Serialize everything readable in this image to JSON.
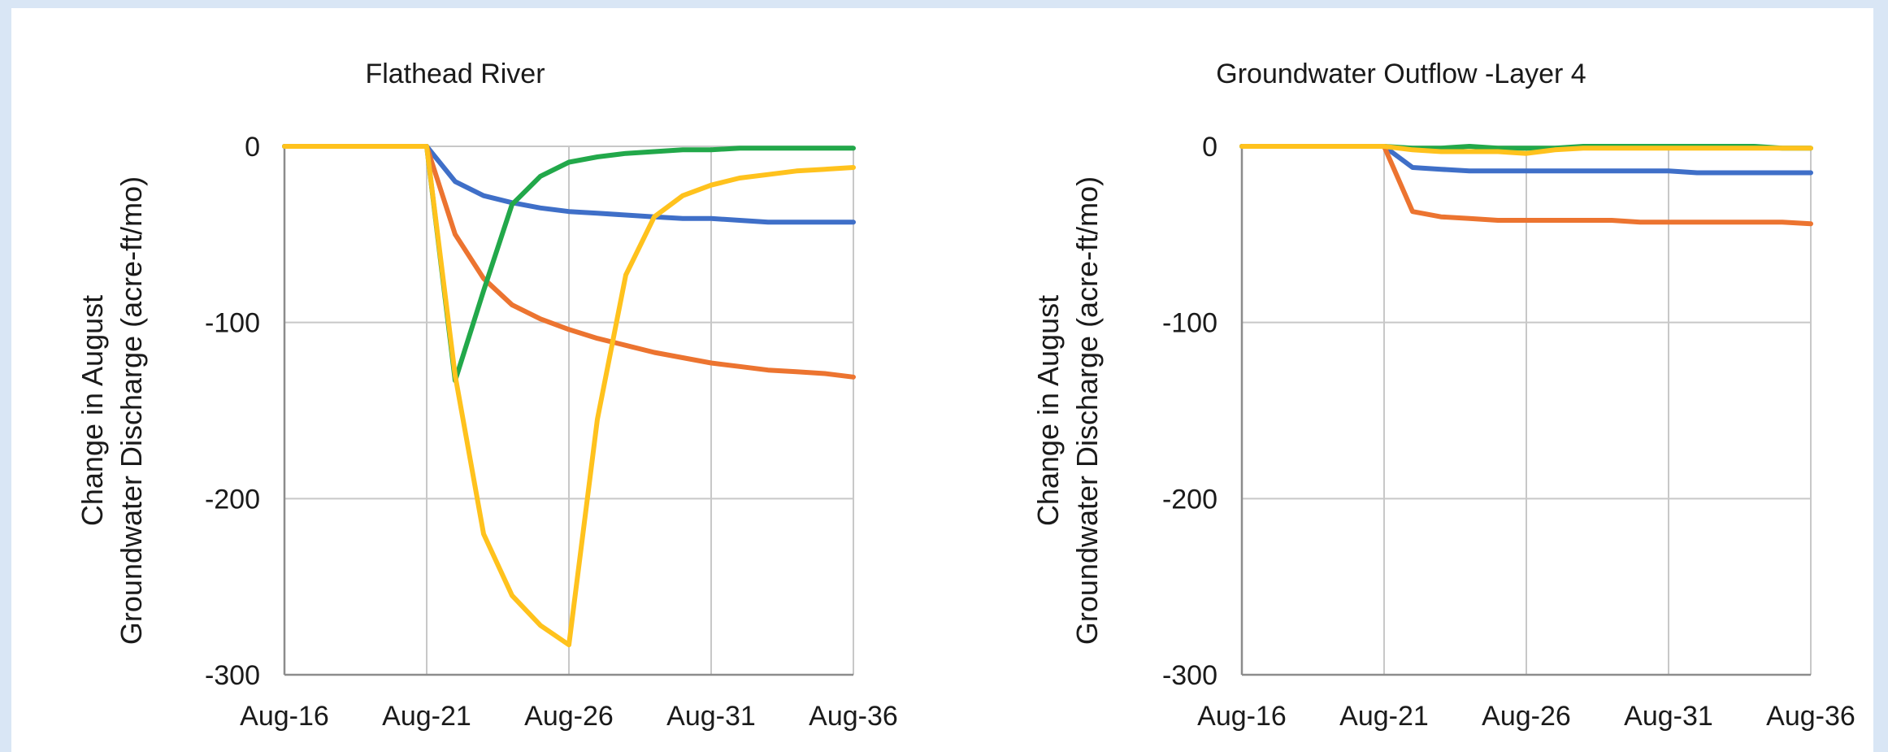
{
  "colors": {
    "page_background": "#d9e6f5",
    "panel_background": "#ffffff",
    "grid": "#c8c8c8",
    "axis": "#8c8c8c",
    "series_blue": "#3f6fc8",
    "series_orange": "#ec7430",
    "series_green": "#22a84a",
    "series_yellow": "#ffc21d"
  },
  "chart_data": [
    {
      "type": "line",
      "title": "Flathead River",
      "ylabel_line1": "Change in August",
      "ylabel_line2": "Groundwater Discharge (acre-ft/mo)",
      "xlabel": "",
      "x_tick_labels": [
        "Aug-16",
        "Aug-21",
        "Aug-26",
        "Aug-31",
        "Aug-36"
      ],
      "y_tick_labels": [
        "0",
        "-100",
        "-200",
        "-300"
      ],
      "ylim": [
        -300,
        0
      ],
      "xlim": [
        2016,
        2036
      ],
      "grid": true,
      "legend": "none",
      "series": [
        {
          "color": "#3f6fc8",
          "x": [
            2016,
            2021,
            2022,
            2023,
            2024,
            2025,
            2026,
            2027,
            2028,
            2029,
            2030,
            2031,
            2032,
            2033,
            2034,
            2035,
            2036
          ],
          "values": [
            0,
            0,
            -20,
            -28,
            -32,
            -35,
            -37,
            -38,
            -39,
            -40,
            -41,
            -41,
            -42,
            -43,
            -43,
            -43,
            -43
          ]
        },
        {
          "color": "#ec7430",
          "x": [
            2016,
            2021,
            2022,
            2023,
            2024,
            2025,
            2026,
            2027,
            2028,
            2029,
            2030,
            2031,
            2032,
            2033,
            2034,
            2035,
            2036
          ],
          "values": [
            0,
            0,
            -50,
            -75,
            -90,
            -98,
            -104,
            -109,
            -113,
            -117,
            -120,
            -123,
            -125,
            -127,
            -128,
            -129,
            -131
          ]
        },
        {
          "color": "#22a84a",
          "x": [
            2016,
            2021,
            2022,
            2023,
            2024,
            2025,
            2026,
            2027,
            2028,
            2029,
            2030,
            2031,
            2032,
            2033,
            2034,
            2035,
            2036
          ],
          "values": [
            0,
            0,
            -133,
            -82,
            -33,
            -17,
            -9,
            -6,
            -4,
            -3,
            -2,
            -2,
            -1,
            -1,
            -1,
            -1,
            -1
          ]
        },
        {
          "color": "#ffc21d",
          "x": [
            2016,
            2021,
            2022,
            2023,
            2024,
            2025,
            2026,
            2027,
            2028,
            2029,
            2030,
            2031,
            2032,
            2033,
            2034,
            2035,
            2036
          ],
          "values": [
            0,
            0,
            -130,
            -220,
            -255,
            -272,
            -283,
            -155,
            -73,
            -40,
            -28,
            -22,
            -18,
            -16,
            -14,
            -13,
            -12
          ]
        }
      ]
    },
    {
      "type": "line",
      "title": "Groundwater Outflow -Layer 4",
      "ylabel_line1": "Change in August",
      "ylabel_line2": "Groundwater Discharge (acre-ft/mo)",
      "xlabel": "",
      "x_tick_labels": [
        "Aug-16",
        "Aug-21",
        "Aug-26",
        "Aug-31",
        "Aug-36"
      ],
      "y_tick_labels": [
        "0",
        "-100",
        "-200",
        "-300"
      ],
      "ylim": [
        -300,
        0
      ],
      "xlim": [
        2016,
        2036
      ],
      "grid": true,
      "legend": "none",
      "series": [
        {
          "color": "#3f6fc8",
          "x": [
            2016,
            2021,
            2022,
            2023,
            2024,
            2025,
            2026,
            2027,
            2028,
            2029,
            2030,
            2031,
            2032,
            2033,
            2034,
            2035,
            2036
          ],
          "values": [
            0,
            0,
            -12,
            -13,
            -14,
            -14,
            -14,
            -14,
            -14,
            -14,
            -14,
            -14,
            -15,
            -15,
            -15,
            -15,
            -15
          ]
        },
        {
          "color": "#ec7430",
          "x": [
            2016,
            2021,
            2022,
            2023,
            2024,
            2025,
            2026,
            2027,
            2028,
            2029,
            2030,
            2031,
            2032,
            2033,
            2034,
            2035,
            2036
          ],
          "values": [
            0,
            0,
            -37,
            -40,
            -41,
            -42,
            -42,
            -42,
            -42,
            -42,
            -43,
            -43,
            -43,
            -43,
            -43,
            -43,
            -44
          ]
        },
        {
          "color": "#22a84a",
          "x": [
            2016,
            2021,
            2022,
            2023,
            2024,
            2025,
            2026,
            2027,
            2028,
            2029,
            2030,
            2031,
            2032,
            2033,
            2034,
            2035,
            2036
          ],
          "values": [
            0,
            0,
            -1,
            -1,
            0,
            -1,
            -1,
            -1,
            0,
            0,
            0,
            0,
            0,
            0,
            0,
            -1,
            -1
          ]
        },
        {
          "color": "#ffc21d",
          "x": [
            2016,
            2021,
            2022,
            2023,
            2024,
            2025,
            2026,
            2027,
            2028,
            2029,
            2030,
            2031,
            2032,
            2033,
            2034,
            2035,
            2036
          ],
          "values": [
            0,
            0,
            -2,
            -3,
            -3,
            -3,
            -4,
            -2,
            -1,
            -1,
            -1,
            -1,
            -1,
            -1,
            -1,
            -1,
            -1
          ]
        }
      ]
    }
  ]
}
